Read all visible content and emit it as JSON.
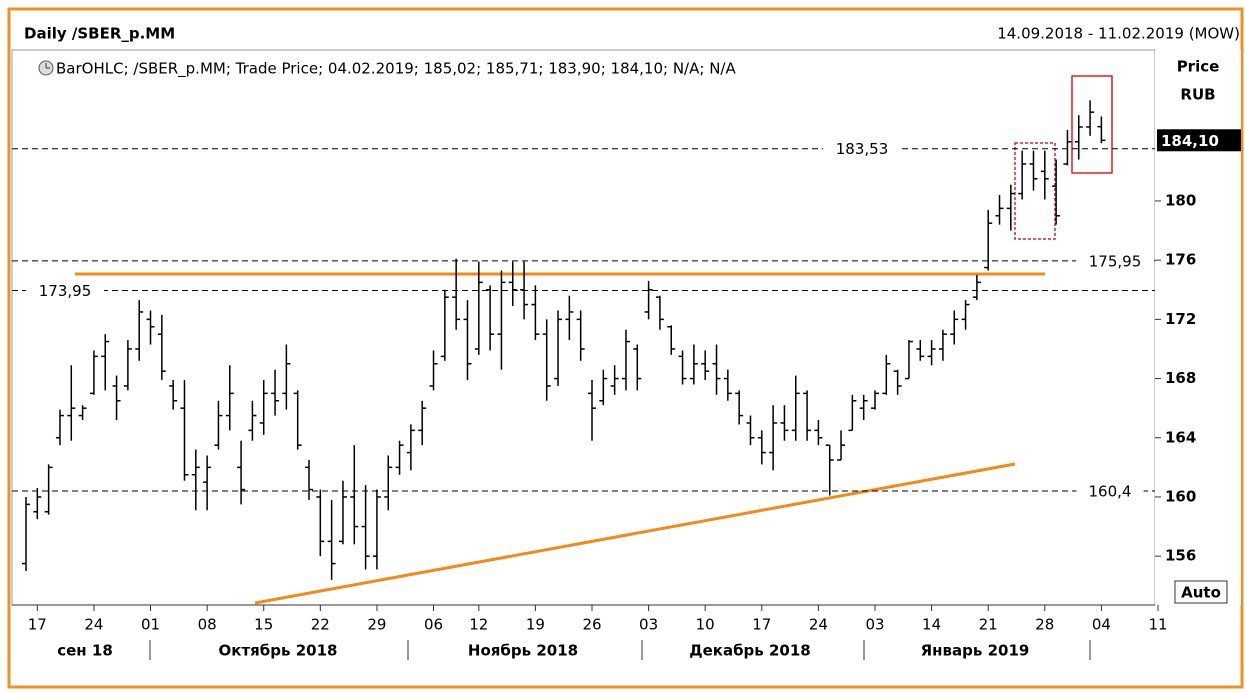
{
  "chart_data": {
    "type": "ohlc",
    "title": "Daily /SBER_p.MM",
    "date_range": "14.09.2018 - 11.02.2019 (MOW)",
    "legend": "BarOHLC; /SBER_p.MM; Trade Price; 04.02.2019; 185,02; 185,71; 183,90; 184,10; N/A; N/A",
    "y_axis_label": "Price",
    "y_axis_unit": "RUB",
    "scale_mode": "Auto",
    "categories": [
      null,
      "17",
      null,
      null,
      null,
      null,
      "24",
      null,
      null,
      null,
      null,
      "01",
      null,
      null,
      null,
      null,
      "08",
      null,
      null,
      null,
      null,
      "15",
      null,
      null,
      null,
      null,
      "22",
      null,
      null,
      null,
      null,
      "29",
      null,
      null,
      null,
      null,
      "06",
      null,
      null,
      null,
      "12",
      null,
      null,
      null,
      null,
      "19",
      null,
      null,
      null,
      null,
      "26",
      null,
      null,
      null,
      null,
      "03",
      null,
      null,
      null,
      null,
      "10",
      null,
      null,
      null,
      null,
      "17",
      null,
      null,
      null,
      null,
      "24",
      null,
      null,
      null,
      null,
      "03",
      null,
      null,
      null,
      null,
      "14",
      null,
      null,
      null,
      null,
      "21",
      null,
      null,
      null,
      null,
      "28",
      null,
      null,
      null,
      null,
      "04",
      null,
      null,
      null,
      null,
      "11"
    ],
    "month_labels": [
      "сен 18",
      "Октябрь 2018",
      "Ноябрь 2018",
      "Декабрь 2018",
      "Январь 2019"
    ],
    "open": [
      155.5,
      159,
      159,
      164,
      165.5,
      165.5,
      167,
      169.5,
      167.5,
      167.5,
      170,
      172,
      171,
      167.5,
      166,
      161.5,
      161,
      163.5,
      165.5,
      162,
      164.5,
      165,
      167,
      167,
      167,
      162,
      160,
      157,
      157,
      160,
      158,
      156,
      160,
      162,
      163,
      164.5,
      167.5,
      169.5,
      173.5,
      172,
      170,
      174,
      171,
      174.5,
      174,
      173,
      171,
      168,
      172,
      172,
      167,
      166.5,
      167.5,
      168,
      170,
      172.5,
      173.5,
      171.5,
      169.5,
      168,
      169,
      169,
      168,
      167,
      165,
      164,
      163,
      165,
      164.5,
      167,
      164.5,
      163.5,
      162.5,
      164.5,
      166,
      166,
      167,
      168.5,
      168,
      170,
      169.5,
      170,
      171,
      172,
      173.5,
      175.5,
      179,
      179.5,
      180.5,
      182.5,
      182,
      181,
      182.5,
      184,
      185,
      185.02,
      null,
      null,
      null,
      null,
      null
    ],
    "high": [
      160,
      160.6,
      162.2,
      165.9,
      168.9,
      166.2,
      169.9,
      171,
      168.2,
      170.6,
      173.3,
      172.6,
      172.3,
      167.9,
      167.9,
      163.2,
      162.8,
      166.5,
      168.9,
      163.8,
      166.5,
      167.9,
      168.6,
      170.3,
      167.2,
      162.5,
      160.5,
      159.8,
      161.1,
      163.5,
      160.8,
      160.5,
      162.8,
      163.8,
      164.9,
      166.5,
      169.9,
      174,
      176.1,
      173.3,
      175.9,
      174.3,
      175.3,
      175.9,
      175.9,
      174.3,
      172,
      172.6,
      173.6,
      172.6,
      167.9,
      168.6,
      168.9,
      171.3,
      170.3,
      174.6,
      173.6,
      171.6,
      169.9,
      170.3,
      169.9,
      170.3,
      168.6,
      167.2,
      165.5,
      164.5,
      166.2,
      166.2,
      168.2,
      167.2,
      165.2,
      163.5,
      164.5,
      166.9,
      166.9,
      167.2,
      169.6,
      168.6,
      170.6,
      170.6,
      170.6,
      171.3,
      172.6,
      173.3,
      175,
      179.4,
      180.4,
      181.1,
      183.4,
      183.4,
      183.4,
      182.8,
      184.8,
      185.8,
      186.8,
      185.71,
      null,
      null,
      null,
      null,
      null
    ],
    "low": [
      155,
      158.5,
      158.8,
      163.5,
      163.8,
      165.2,
      166.9,
      167.2,
      165.2,
      167.2,
      169.2,
      170.3,
      167.9,
      165.9,
      161.1,
      159.1,
      159.1,
      163.2,
      164.5,
      159.5,
      163.8,
      164.2,
      165.5,
      165.9,
      163.2,
      159.8,
      156,
      154.4,
      156.8,
      156.8,
      155.1,
      155.1,
      159.1,
      161.5,
      161.8,
      163.5,
      167.2,
      169.2,
      171.3,
      167.9,
      169.6,
      169.9,
      168.6,
      172.9,
      172,
      170.6,
      166.5,
      167.5,
      170.6,
      169.2,
      163.8,
      166.2,
      166.9,
      167.2,
      167.2,
      172,
      171.3,
      169.6,
      167.6,
      167.6,
      167.9,
      166.9,
      166.5,
      164.9,
      163.5,
      162.2,
      161.8,
      163.8,
      163.8,
      163.8,
      163.5,
      160.1,
      162.5,
      164.5,
      165.2,
      165.9,
      166.9,
      166.9,
      168,
      169.2,
      168.9,
      169.2,
      170.3,
      171.3,
      173.3,
      175.3,
      178.4,
      178,
      180.1,
      180.7,
      180.1,
      178.4,
      182.4,
      182.8,
      184.4,
      183.9,
      null,
      null,
      null,
      null,
      null
    ],
    "close": [
      159.5,
      160,
      162,
      165.5,
      166,
      166,
      169.5,
      170.5,
      166.5,
      170,
      172.5,
      171.5,
      168.5,
      166.5,
      161.5,
      162,
      162,
      165.5,
      167,
      160.5,
      165.5,
      167,
      166.5,
      169,
      163.5,
      160.5,
      157,
      155.5,
      160,
      158,
      156,
      160,
      162,
      163.5,
      164.5,
      166,
      169,
      173.5,
      172,
      169,
      174.5,
      171,
      174.5,
      174,
      173,
      171,
      167.5,
      172,
      172.5,
      170,
      166,
      168,
      168,
      170.5,
      168,
      174,
      172,
      170,
      168,
      169,
      168.5,
      168,
      167,
      165.5,
      164,
      163,
      165,
      164.5,
      167,
      164.5,
      164,
      162.5,
      163.5,
      166.5,
      166.5,
      167,
      169,
      167.5,
      170.5,
      169.5,
      170,
      171,
      172,
      173,
      174.5,
      178.5,
      179.5,
      180.5,
      182.5,
      181.5,
      181.5,
      179,
      184,
      185,
      186,
      184.1,
      null,
      null,
      null,
      null,
      null
    ],
    "color": "#000000",
    "levels": [
      {
        "value": 183.53,
        "label": "183,53"
      },
      {
        "value": 175.95,
        "label": "175,95"
      },
      {
        "value": 173.95,
        "label": "173,95"
      },
      {
        "value": 160.4,
        "label": "160,4"
      }
    ],
    "last_price": {
      "value": 184.1,
      "label": "184,10"
    },
    "ylim": [
      152.7,
      190.2
    ],
    "yticks": [
      156,
      160,
      164,
      168,
      172,
      176,
      180
    ]
  }
}
